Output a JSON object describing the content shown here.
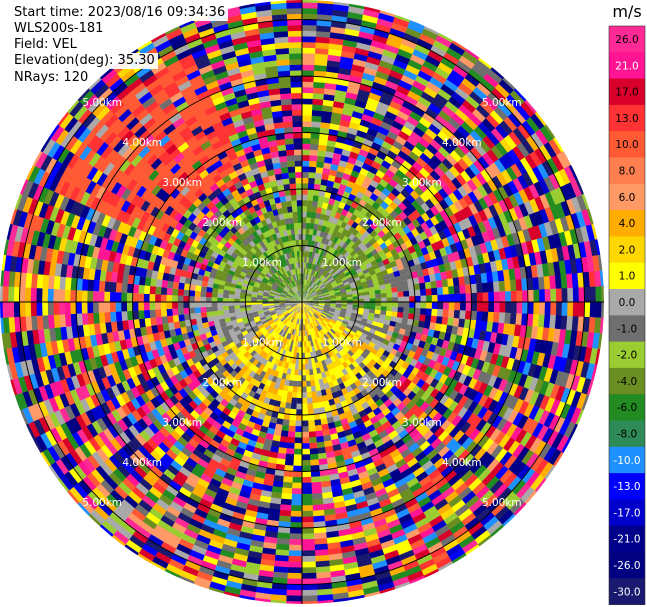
{
  "info": {
    "start_time": "Start time: 2023/08/16 09:34:36",
    "instrument": "WLS200s-181",
    "field": "Field: VEL",
    "elevation": "Elevation(deg): 35.30",
    "nrays": "NRays: 120"
  },
  "chart_data": {
    "type": "heatmap",
    "subtype": "ppi-polar",
    "nrays": 120,
    "rings_km": [
      1.0,
      2.0,
      3.0,
      4.0,
      5.0
    ],
    "ring_label_text": "km",
    "max_range_km": 5.4,
    "crosshair": true,
    "colorbar": {
      "unit": "m/s",
      "tick_labels": [
        "26.0",
        "21.0",
        "17.0",
        "13.0",
        "10.0",
        "8.0",
        "6.0",
        "4.0",
        "2.0",
        "1.0",
        "0.0",
        "-1.0",
        "-2.0",
        "-4.0",
        "-6.0",
        "-8.0",
        "-10.0",
        "-13.0",
        "-17.0",
        "-21.0",
        "-26.0",
        "-30.0"
      ],
      "colors": [
        "#ff2a96",
        "#ff1493",
        "#d8002a",
        "#ff3333",
        "#ff5a33",
        "#ff7f50",
        "#ff9966",
        "#ffad00",
        "#ffd700",
        "#ffff00",
        "#a9a9a9",
        "#6f6f6f",
        "#9acd32",
        "#6b8e23",
        "#228b22",
        "#2e8b57",
        "#1e90ff",
        "#0000ff",
        "#0000cd",
        "#00008b",
        "#000080",
        "#191970"
      ]
    }
  }
}
